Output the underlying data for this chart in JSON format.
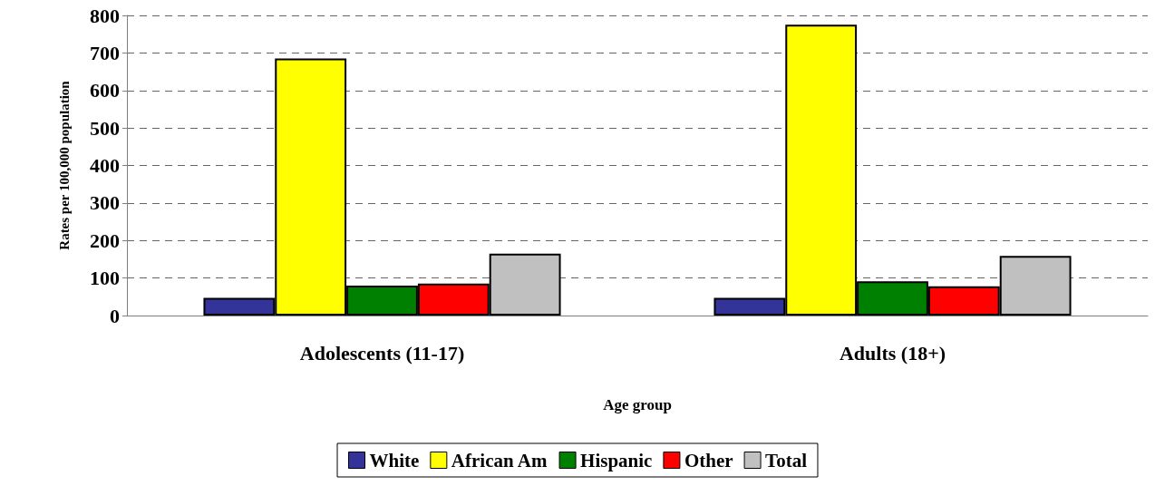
{
  "chart_data": {
    "type": "bar",
    "xlabel": "Age group",
    "ylabel": "Rates per 100,000 population",
    "categories": [
      "Adolescents (11-17)",
      "Adults (18+)"
    ],
    "series": [
      {
        "name": "White",
        "color": "#333399",
        "values": [
          47,
          47
        ]
      },
      {
        "name": "African Am",
        "color": "#ffff00",
        "values": [
          685,
          775
        ]
      },
      {
        "name": "Hispanic",
        "color": "#008000",
        "values": [
          80,
          91
        ]
      },
      {
        "name": "Other",
        "color": "#ff0000",
        "values": [
          85,
          78
        ]
      },
      {
        "name": "Total",
        "color": "#c0c0c0",
        "values": [
          165,
          159
        ]
      }
    ],
    "ylim": [
      0,
      800
    ],
    "yticks": [
      0,
      100,
      200,
      300,
      400,
      500,
      600,
      700,
      800
    ],
    "grid": "y",
    "legend": "bottom"
  }
}
